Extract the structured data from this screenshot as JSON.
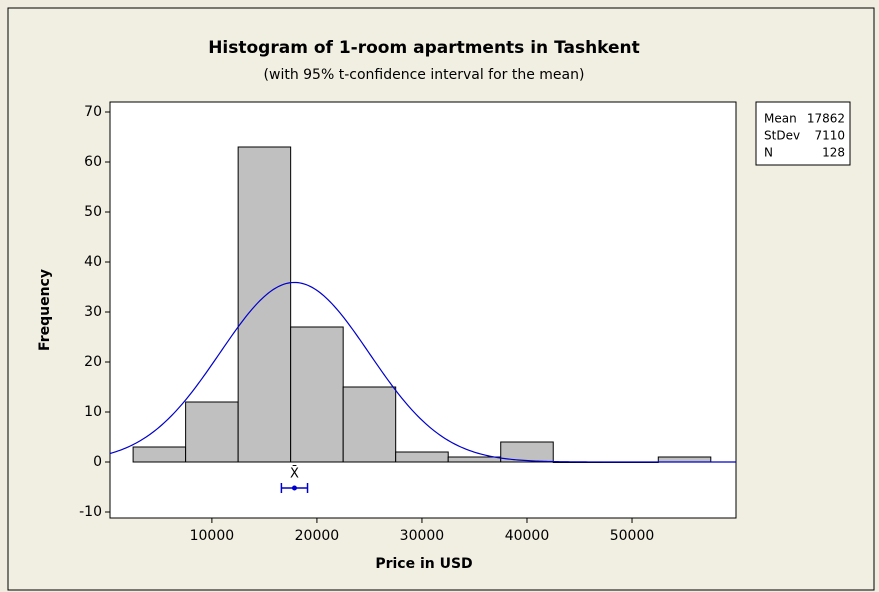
{
  "chart_data": {
    "type": "histogram",
    "title": "Histogram of 1-room apartments in Tashkent",
    "subtitle": "(with 95% t-confidence interval for the mean)",
    "x_label": "Price in USD",
    "y_label": "Frequency",
    "bins": [
      2500,
      7500,
      12500,
      17500,
      22500,
      27500,
      32500,
      37500,
      42500,
      47500,
      52500,
      57500
    ],
    "values": [
      3,
      12,
      63,
      27,
      15,
      2,
      1,
      4,
      0,
      0,
      1
    ],
    "color": "#c0c0c0",
    "curve_color": "#0000cc",
    "xlim": [
      300,
      59900
    ],
    "xticks": [
      10000,
      20000,
      30000,
      40000,
      50000
    ],
    "ylim": [
      -11.2,
      72
    ],
    "yticks": [
      -10,
      0,
      10,
      20,
      30,
      40,
      50,
      60,
      70
    ],
    "stats": [
      {
        "label": "Mean",
        "value": 17862
      },
      {
        "label": "StDev",
        "value": 7110
      },
      {
        "label": "N",
        "value": 128
      }
    ],
    "ci": [
      16618,
      19106
    ],
    "ci_label": "X̄"
  }
}
